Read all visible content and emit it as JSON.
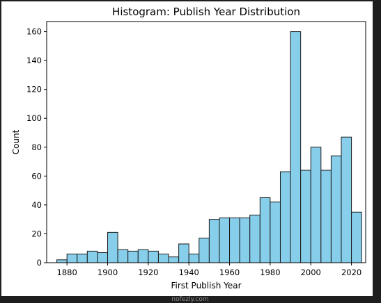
{
  "chart_data": {
    "type": "bar",
    "title": "Histogram: Publish Year Distribution",
    "xlabel": "First Publish Year",
    "ylabel": "Count",
    "xlim": [
      1870,
      2027
    ],
    "ylim": [
      0,
      167
    ],
    "xticks": [
      1880,
      1900,
      1920,
      1940,
      1960,
      1980,
      2000,
      2020
    ],
    "yticks": [
      0,
      20,
      40,
      60,
      80,
      100,
      120,
      140,
      160
    ],
    "bin_width": 5,
    "bin_start": 1875,
    "values": [
      2,
      6,
      6,
      8,
      7,
      21,
      9,
      8,
      9,
      8,
      6,
      4,
      13,
      6,
      17,
      30,
      31,
      31,
      31,
      33,
      45,
      42,
      63,
      160,
      64,
      80,
      64,
      74,
      87,
      35
    ],
    "bar_color": "#87ceeb",
    "edge_color": "#1a1a1a",
    "grid": false
  },
  "watermark": {
    "text": "nofezly.com"
  }
}
